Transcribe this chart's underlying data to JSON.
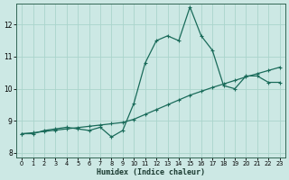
{
  "xlabel": "Humidex (Indice chaleur)",
  "bg_color": "#cce8e4",
  "grid_color": "#aad4cc",
  "line_color": "#1a6b5a",
  "xlim": [
    -0.5,
    23.5
  ],
  "ylim": [
    7.85,
    12.65
  ],
  "yticks": [
    8,
    9,
    10,
    11,
    12
  ],
  "xticks": [
    0,
    1,
    2,
    3,
    4,
    5,
    6,
    7,
    8,
    9,
    10,
    11,
    12,
    13,
    14,
    15,
    16,
    17,
    18,
    19,
    20,
    21,
    22,
    23
  ],
  "curve1_x": [
    0,
    1,
    2,
    3,
    4,
    5,
    6,
    7,
    8,
    9,
    10,
    11,
    12,
    13,
    14,
    15,
    16,
    17,
    18,
    19,
    20,
    21,
    22,
    23
  ],
  "curve1_y": [
    8.6,
    8.6,
    8.7,
    8.75,
    8.8,
    8.75,
    8.7,
    8.8,
    8.5,
    8.7,
    9.55,
    10.8,
    11.5,
    11.65,
    11.5,
    12.55,
    11.65,
    11.2,
    10.1,
    10.0,
    10.4,
    10.4,
    10.2,
    10.2
  ],
  "curve2_x": [
    0,
    1,
    2,
    3,
    4,
    5,
    6,
    7,
    8,
    9,
    10,
    11,
    12,
    13,
    14,
    15,
    16,
    17,
    18,
    19,
    20,
    21,
    22,
    23
  ],
  "curve2_y": [
    8.6,
    8.63,
    8.67,
    8.71,
    8.75,
    8.79,
    8.83,
    8.87,
    8.91,
    8.95,
    9.05,
    9.2,
    9.35,
    9.5,
    9.65,
    9.8,
    9.92,
    10.04,
    10.15,
    10.26,
    10.37,
    10.47,
    10.57,
    10.67
  ]
}
